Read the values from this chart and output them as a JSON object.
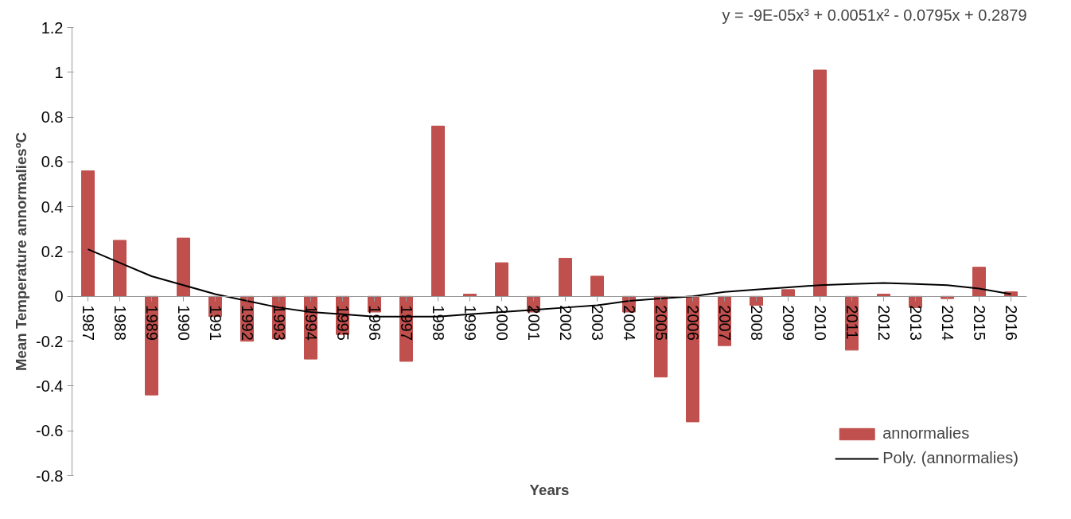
{
  "chart_data": {
    "type": "bar",
    "xlabel": "Years",
    "ylabel": "Mean Temperature annormaliesºC",
    "categories": [
      "1987",
      "1988",
      "1989",
      "1990",
      "1991",
      "1992",
      "1993",
      "1994",
      "1995",
      "1996",
      "1997",
      "1998",
      "1999",
      "2000",
      "2001",
      "2002",
      "2003",
      "2004",
      "2005",
      "2006",
      "2007",
      "2008",
      "2009",
      "2010",
      "2011",
      "2012",
      "2013",
      "2014",
      "2015",
      "2016"
    ],
    "series": [
      {
        "name": "annormalies",
        "color": "#c0504d",
        "values": [
          0.56,
          0.25,
          -0.44,
          0.26,
          -0.09,
          -0.2,
          -0.19,
          -0.28,
          -0.17,
          -0.07,
          -0.29,
          0.76,
          0.01,
          0.15,
          -0.07,
          0.17,
          0.09,
          -0.07,
          -0.36,
          -0.56,
          -0.22,
          -0.04,
          0.03,
          1.01,
          -0.24,
          0.01,
          -0.05,
          -0.01,
          0.13,
          0.02
        ]
      },
      {
        "name": "Poly. (annormalies)",
        "type": "line",
        "color": "#000000",
        "values": [
          0.21,
          0.15,
          0.09,
          0.05,
          0.01,
          -0.02,
          -0.05,
          -0.07,
          -0.08,
          -0.09,
          -0.09,
          -0.09,
          -0.08,
          -0.07,
          -0.06,
          -0.05,
          -0.04,
          -0.02,
          -0.01,
          0.0,
          0.02,
          0.03,
          0.04,
          0.05,
          0.055,
          0.06,
          0.055,
          0.05,
          0.035,
          0.01
        ]
      }
    ],
    "ylim": [
      -0.8,
      1.2
    ],
    "yticks": [
      -0.8,
      -0.6,
      -0.4,
      -0.2,
      0,
      0.2,
      0.4,
      0.6,
      0.8,
      1,
      1.2
    ],
    "annotations": [
      "y = -9E-05x³ + 0.0051x² - 0.0795x + 0.2879"
    ],
    "grid": false,
    "legend": "bottom right"
  }
}
